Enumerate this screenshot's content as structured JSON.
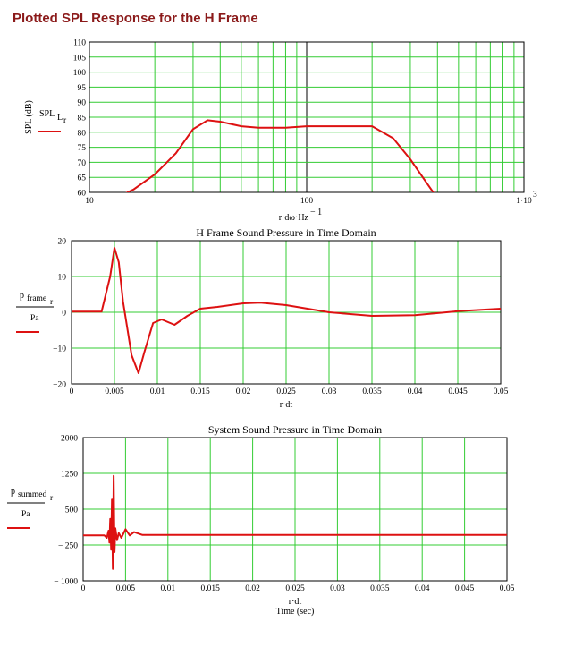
{
  "page_title": "Plotted SPL Response for the H Frame",
  "colors": {
    "grid": "#33cc33",
    "trace": "#dd1111",
    "title": "#8b1a1a"
  },
  "chart_data": [
    {
      "type": "line",
      "title": "",
      "xscale": "log",
      "xlim": [
        10,
        1000
      ],
      "ylim": [
        60,
        110
      ],
      "y_ticks": [
        "60",
        "65",
        "70",
        "75",
        "80",
        "85",
        "90",
        "95",
        "100",
        "105",
        "110"
      ],
      "x_tick_labels": [
        "10",
        "100",
        "1·10"
      ],
      "x_tick_exp": "3",
      "xlabel_main": "r·dω·Hz",
      "xlabel_exp": "− 1",
      "ylabel_outer": "SPL (dB)",
      "legend_main": "SPL",
      "legend_sub": "L",
      "legend_subsub": "r",
      "grid": true,
      "series": [
        {
          "x": [
            14,
            16,
            20,
            25,
            30,
            35,
            40,
            50,
            60,
            80,
            100,
            150,
            200,
            250,
            300,
            350,
            400
          ],
          "y": [
            59,
            61,
            66,
            73,
            81,
            84,
            83.5,
            82,
            81.5,
            81.5,
            82,
            82,
            82,
            78,
            71,
            64,
            58
          ]
        }
      ]
    },
    {
      "type": "line",
      "title": "H Frame Sound Pressure in Time Domain",
      "xlim": [
        0,
        0.05
      ],
      "ylim": [
        -20,
        20
      ],
      "x_ticks": [
        "0",
        "0.005",
        "0.01",
        "0.015",
        "0.02",
        "0.025",
        "0.03",
        "0.035",
        "0.04",
        "0.045",
        "0.05"
      ],
      "y_ticks": [
        "−20",
        "−10",
        "0",
        "10",
        "20"
      ],
      "xlabel": "r·dt",
      "legend_num": "p",
      "legend_num_sub": "frame",
      "legend_num_subsub": "r",
      "legend_den": "Pa",
      "grid": true,
      "series": [
        {
          "x": [
            0,
            0.0035,
            0.0045,
            0.005,
            0.0055,
            0.006,
            0.007,
            0.0078,
            0.0085,
            0.0095,
            0.0105,
            0.012,
            0.0135,
            0.015,
            0.017,
            0.02,
            0.022,
            0.025,
            0.03,
            0.035,
            0.04,
            0.045,
            0.05
          ],
          "y": [
            0.2,
            0.2,
            10,
            18,
            14,
            3,
            -12,
            -17,
            -11,
            -3,
            -2,
            -3.5,
            -1,
            1,
            1.5,
            2.5,
            2.7,
            2,
            0,
            -1,
            -0.8,
            0.3,
            1
          ]
        }
      ]
    },
    {
      "type": "line",
      "title": "System Sound Pressure in Time Domain",
      "xlim": [
        0,
        0.05
      ],
      "ylim": [
        -1000,
        2000
      ],
      "x_ticks": [
        "0",
        "0.005",
        "0.01",
        "0.015",
        "0.02",
        "0.025",
        "0.03",
        "0.035",
        "0.04",
        "0.045",
        "0.05"
      ],
      "y_ticks": [
        "− 1000",
        "− 250",
        "500",
        "1250",
        "2000"
      ],
      "y_tick_values": [
        -1000,
        -250,
        500,
        1250,
        2000
      ],
      "xlabel": "r·dt",
      "xlabel2": "Time (sec)",
      "legend_num": "p",
      "legend_num_sub": "summed",
      "legend_num_subsub": "r",
      "legend_den": "Pa",
      "grid": true,
      "series": [
        {
          "x": [
            0,
            0.0025,
            0.0028,
            0.003,
            0.0031,
            0.0032,
            0.0033,
            0.0034,
            0.0035,
            0.0036,
            0.0037,
            0.0038,
            0.004,
            0.0042,
            0.0045,
            0.005,
            0.0055,
            0.006,
            0.007,
            0.05
          ],
          "y": [
            -50,
            -50,
            -100,
            50,
            -200,
            300,
            -350,
            700,
            -750,
            1200,
            -400,
            100,
            -150,
            0,
            -100,
            80,
            -50,
            20,
            -40,
            -40
          ]
        }
      ]
    }
  ]
}
